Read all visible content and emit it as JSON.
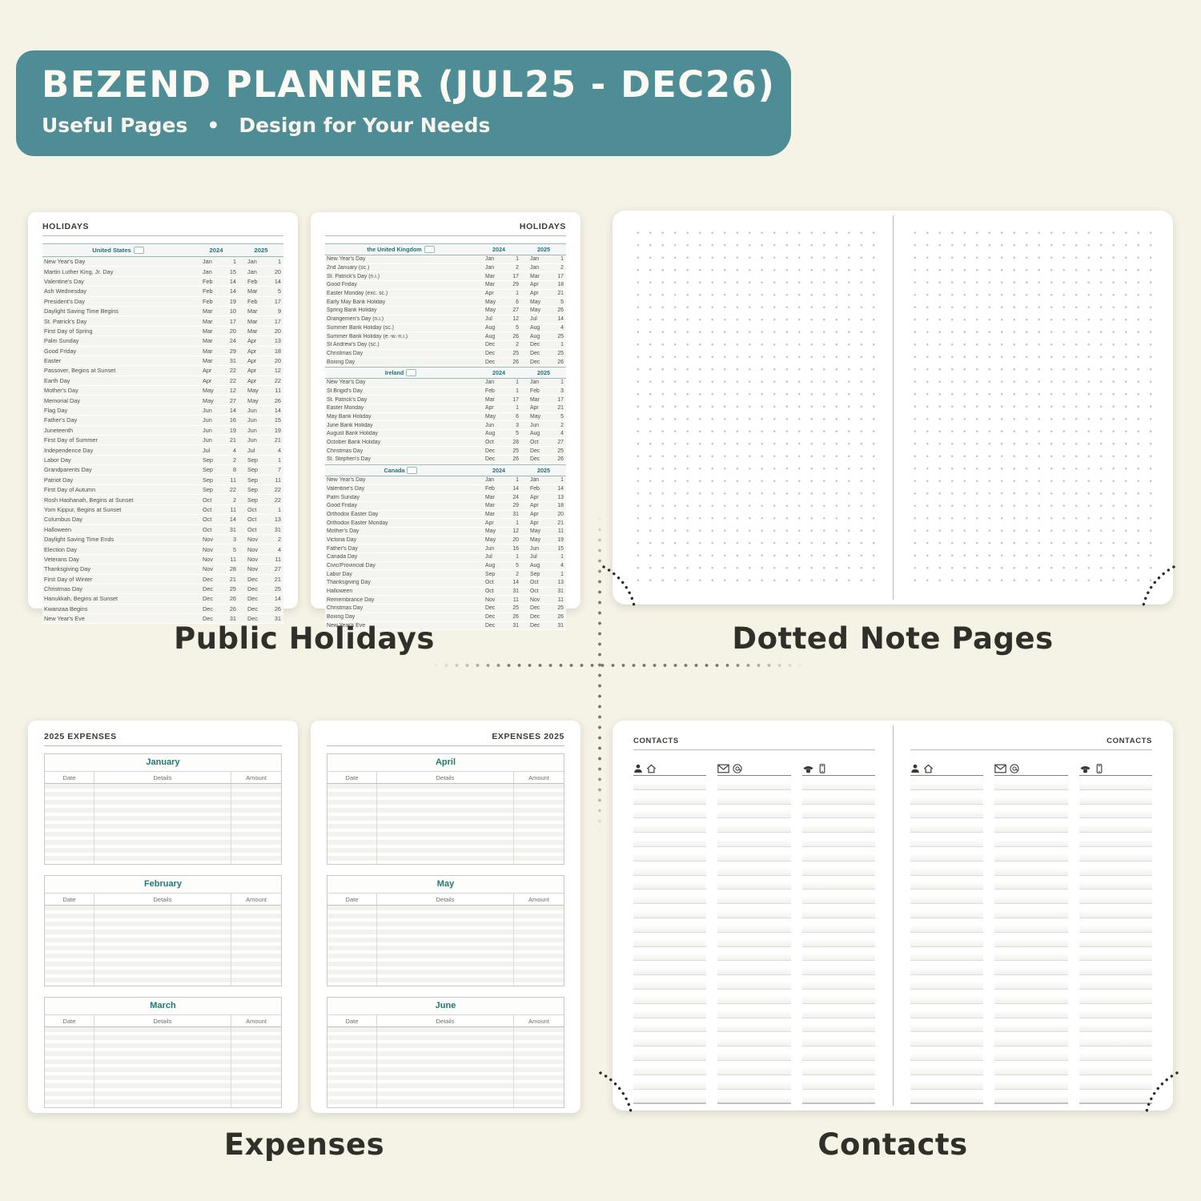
{
  "header": {
    "title": "BEZEND PLANNER (JUL25 - DEC26)",
    "subtitle": "Useful Pages",
    "subtitle_separator": "•",
    "subtitle2": "Design for Your Needs"
  },
  "colors": {
    "banner_teal": "#4f8d96",
    "background_cream": "#f5f2e6",
    "holiday_accent_teal": "#20707a",
    "expense_month_teal": "#1d7a6f"
  },
  "holidays": {
    "caption": "Public Holidays",
    "page_title": "HOLIDAYS",
    "years": [
      "2024",
      "2025"
    ],
    "left_sections": [
      {
        "country": "United States",
        "rows": [
          [
            "New Year's Day",
            "Jan",
            "1",
            "Jan",
            "1"
          ],
          [
            "Martin Luther King, Jr. Day",
            "Jan",
            "15",
            "Jan",
            "20"
          ],
          [
            "Valentine's Day",
            "Feb",
            "14",
            "Feb",
            "14"
          ],
          [
            "Ash Wednesday",
            "Feb",
            "14",
            "Mar",
            "5"
          ],
          [
            "President's Day",
            "Feb",
            "19",
            "Feb",
            "17"
          ],
          [
            "Daylight Saving Time Begins",
            "Mar",
            "10",
            "Mar",
            "9"
          ],
          [
            "St. Patrick's Day",
            "Mar",
            "17",
            "Mar",
            "17"
          ],
          [
            "First Day of Spring",
            "Mar",
            "20",
            "Mar",
            "20"
          ],
          [
            "Palm Sunday",
            "Mar",
            "24",
            "Apr",
            "13"
          ],
          [
            "Good Friday",
            "Mar",
            "29",
            "Apr",
            "18"
          ],
          [
            "Easter",
            "Mar",
            "31",
            "Apr",
            "20"
          ],
          [
            "Passover, Begins at Sunset",
            "Apr",
            "22",
            "Apr",
            "12"
          ],
          [
            "Earth Day",
            "Apr",
            "22",
            "Apr",
            "22"
          ],
          [
            "Mother's Day",
            "May",
            "12",
            "May",
            "11"
          ],
          [
            "Memorial Day",
            "May",
            "27",
            "May",
            "26"
          ],
          [
            "Flag Day",
            "Jun",
            "14",
            "Jun",
            "14"
          ],
          [
            "Father's Day",
            "Jun",
            "16",
            "Jun",
            "15"
          ],
          [
            "Juneteenth",
            "Jun",
            "19",
            "Jun",
            "19"
          ],
          [
            "First Day of Summer",
            "Jun",
            "21",
            "Jun",
            "21"
          ],
          [
            "Independence Day",
            "Jul",
            "4",
            "Jul",
            "4"
          ],
          [
            "Labor Day",
            "Sep",
            "2",
            "Sep",
            "1"
          ],
          [
            "Grandparents Day",
            "Sep",
            "8",
            "Sep",
            "7"
          ],
          [
            "Patriot Day",
            "Sep",
            "11",
            "Sep",
            "11"
          ],
          [
            "First Day of Autumn",
            "Sep",
            "22",
            "Sep",
            "22"
          ],
          [
            "Rosh Hashanah, Begins at Sunset",
            "Oct",
            "2",
            "Sep",
            "22"
          ],
          [
            "Yom Kippur, Begins at Sunset",
            "Oct",
            "11",
            "Oct",
            "1"
          ],
          [
            "Columbus Day",
            "Oct",
            "14",
            "Oct",
            "13"
          ],
          [
            "Halloween",
            "Oct",
            "31",
            "Oct",
            "31"
          ],
          [
            "Daylight Saving Time Ends",
            "Nov",
            "3",
            "Nov",
            "2"
          ],
          [
            "Election Day",
            "Nov",
            "5",
            "Nov",
            "4"
          ],
          [
            "Veterans Day",
            "Nov",
            "11",
            "Nov",
            "11"
          ],
          [
            "Thanksgiving Day",
            "Nov",
            "28",
            "Nov",
            "27"
          ],
          [
            "First Day of Winter",
            "Dec",
            "21",
            "Dec",
            "21"
          ],
          [
            "Christmas Day",
            "Dec",
            "25",
            "Dec",
            "25"
          ],
          [
            "Hanukkah, Begins at Sunset",
            "Dec",
            "26",
            "Dec",
            "14"
          ],
          [
            "Kwanzaa Begins",
            "Dec",
            "26",
            "Dec",
            "26"
          ],
          [
            "New Year's Eve",
            "Dec",
            "31",
            "Dec",
            "31"
          ]
        ]
      }
    ],
    "right_sections": [
      {
        "country": "the United Kingdom",
        "rows": [
          [
            "New Year's Day",
            "Jan",
            "1",
            "Jan",
            "1"
          ],
          [
            "2nd January (sc.)",
            "Jan",
            "2",
            "Jan",
            "2"
          ],
          [
            "St. Patrick's Day (n.i.)",
            "Mar",
            "17",
            "Mar",
            "17"
          ],
          [
            "Good Friday",
            "Mar",
            "29",
            "Apr",
            "18"
          ],
          [
            "Easter Monday (exc. sc.)",
            "Apr",
            "1",
            "Apr",
            "21"
          ],
          [
            "Early May Bank Holiday",
            "May",
            "6",
            "May",
            "5"
          ],
          [
            "Spring Bank Holiday",
            "May",
            "27",
            "May",
            "26"
          ],
          [
            "Orangemen's Day (n.i.)",
            "Jul",
            "12",
            "Jul",
            "14"
          ],
          [
            "Summer Bank Holiday (sc.)",
            "Aug",
            "5",
            "Aug",
            "4"
          ],
          [
            "Summer Bank Holiday (e.-w.-n.i.)",
            "Aug",
            "26",
            "Aug",
            "25"
          ],
          [
            "St Andrew's Day (sc.)",
            "Dec",
            "2",
            "Dec",
            "1"
          ],
          [
            "Christmas Day",
            "Dec",
            "25",
            "Dec",
            "25"
          ],
          [
            "Boxing Day",
            "Dec",
            "26",
            "Dec",
            "26"
          ]
        ]
      },
      {
        "country": "Ireland",
        "rows": [
          [
            "New Year's Day",
            "Jan",
            "1",
            "Jan",
            "1"
          ],
          [
            "St Brigid's Day",
            "Feb",
            "1",
            "Feb",
            "3"
          ],
          [
            "St. Patrick's Day",
            "Mar",
            "17",
            "Mar",
            "17"
          ],
          [
            "Easter Monday",
            "Apr",
            "1",
            "Apr",
            "21"
          ],
          [
            "May Bank Holiday",
            "May",
            "6",
            "May",
            "5"
          ],
          [
            "June Bank Holiday",
            "Jun",
            "3",
            "Jun",
            "2"
          ],
          [
            "August Bank Holiday",
            "Aug",
            "5",
            "Aug",
            "4"
          ],
          [
            "October Bank Holiday",
            "Oct",
            "28",
            "Oct",
            "27"
          ],
          [
            "Christmas Day",
            "Dec",
            "25",
            "Dec",
            "25"
          ],
          [
            "St. Stephen's Day",
            "Dec",
            "26",
            "Dec",
            "26"
          ]
        ]
      },
      {
        "country": "Canada",
        "rows": [
          [
            "New Year's Day",
            "Jan",
            "1",
            "Jan",
            "1"
          ],
          [
            "Valentine's Day",
            "Feb",
            "14",
            "Feb",
            "14"
          ],
          [
            "Palm Sunday",
            "Mar",
            "24",
            "Apr",
            "13"
          ],
          [
            "Good Friday",
            "Mar",
            "29",
            "Apr",
            "18"
          ],
          [
            "Orthodox Easter Day",
            "Mar",
            "31",
            "Apr",
            "20"
          ],
          [
            "Orthodox Easter Monday",
            "Apr",
            "1",
            "Apr",
            "21"
          ],
          [
            "Mother's Day",
            "May",
            "12",
            "May",
            "11"
          ],
          [
            "Victoria Day",
            "May",
            "20",
            "May",
            "19"
          ],
          [
            "Father's Day",
            "Jun",
            "16",
            "Jun",
            "15"
          ],
          [
            "Canada Day",
            "Jul",
            "1",
            "Jul",
            "1"
          ],
          [
            "Civic/Provincial Day",
            "Aug",
            "5",
            "Aug",
            "4"
          ],
          [
            "Labor Day",
            "Sep",
            "2",
            "Sep",
            "1"
          ],
          [
            "Thanksgiving Day",
            "Oct",
            "14",
            "Oct",
            "13"
          ],
          [
            "Halloween",
            "Oct",
            "31",
            "Oct",
            "31"
          ],
          [
            "Remembrance Day",
            "Nov",
            "11",
            "Nov",
            "11"
          ],
          [
            "Christmas Day",
            "Dec",
            "25",
            "Dec",
            "25"
          ],
          [
            "Boxing Day",
            "Dec",
            "26",
            "Dec",
            "26"
          ],
          [
            "New Year's Eve",
            "Dec",
            "31",
            "Dec",
            "31"
          ]
        ]
      }
    ]
  },
  "dotted": {
    "caption": "Dotted Note Pages"
  },
  "expenses": {
    "caption": "Expenses",
    "left_page_title": "2025 EXPENSES",
    "right_page_title": "EXPENSES 2025",
    "columns": [
      "Date",
      "Details",
      "Amount"
    ],
    "left_months": [
      "January",
      "February",
      "March"
    ],
    "right_months": [
      "April",
      "May",
      "June"
    ],
    "rows_per_month": 10
  },
  "contacts": {
    "caption": "Contacts",
    "page_title": "CONTACTS",
    "columns": [
      {
        "icons": [
          "person-icon",
          "house-icon"
        ]
      },
      {
        "icons": [
          "envelope-icon",
          "at-icon"
        ]
      },
      {
        "icons": [
          "phone-icon",
          "mobile-phone-icon"
        ]
      }
    ],
    "lines_per_column": 23
  }
}
